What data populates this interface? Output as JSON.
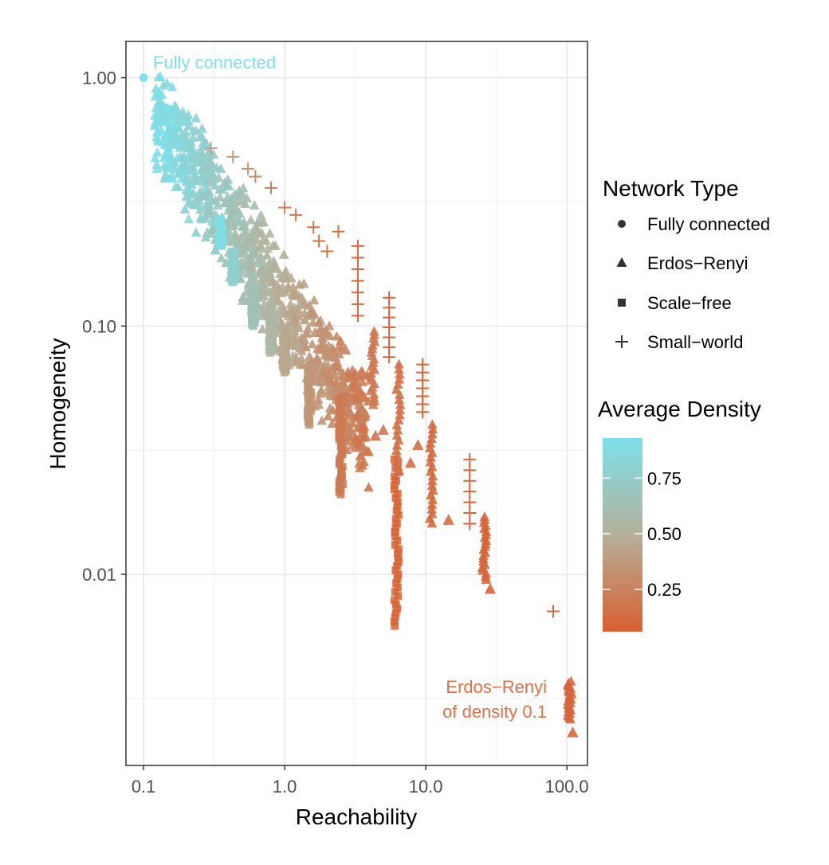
{
  "chart_data": {
    "type": "scatter",
    "xlabel": "Reachability",
    "ylabel": "Homogeneity",
    "x_scale": "log10",
    "y_scale": "log10",
    "xlim": [
      0.075,
      140
    ],
    "ylim": [
      0.0017,
      1.4
    ],
    "x_ticks": [
      0.1,
      1,
      10,
      100
    ],
    "x_tick_labels": [
      "0.1",
      "1.0",
      "10.0",
      "100.0"
    ],
    "y_ticks": [
      0.01,
      0.1,
      1
    ],
    "y_tick_labels": [
      "0.01",
      "0.10",
      "1.00"
    ],
    "grid": true,
    "legend_shape": {
      "title": "Network Type",
      "position": "right",
      "items": [
        {
          "label": "Fully connected",
          "shape": "circle"
        },
        {
          "label": "Erdos−Renyi",
          "shape": "triangle"
        },
        {
          "label": "Scale−free",
          "shape": "square"
        },
        {
          "label": "Small−world",
          "shape": "plus"
        }
      ]
    },
    "legend_color": {
      "title": "Average Density",
      "position": "right",
      "low_color": "#d95f30",
      "mid_color": "#b5b09a",
      "high_color": "#7de0ea",
      "range": [
        0.06,
        0.93
      ],
      "ticks": [
        0.25,
        0.5,
        0.75
      ],
      "tick_labels": [
        "0.25",
        "0.50",
        "0.75"
      ]
    },
    "annotations": [
      {
        "text": "Fully connected",
        "x": 0.115,
        "y": 1.07,
        "color": "#7de0ea"
      },
      {
        "lines": [
          "Erdos−Renyi",
          "of density 0.1"
        ],
        "x": 65,
        "y": 0.0032,
        "color": "#e07045"
      }
    ],
    "series": [
      {
        "name": "Fully connected",
        "shape": "circle",
        "points": [
          [
            0.1,
            1.0,
            0.93
          ]
        ]
      },
      {
        "name": "Scale−free",
        "shape": "square",
        "clusters": [
          {
            "x": 0.35,
            "y_min": 0.21,
            "y_max": 0.27,
            "density": 0.9
          },
          {
            "x": 0.43,
            "y_min": 0.15,
            "y_max": 0.2,
            "density": 0.78
          },
          {
            "x": 0.6,
            "y_min": 0.1,
            "y_max": 0.15,
            "density": 0.65
          },
          {
            "x": 0.8,
            "y_min": 0.078,
            "y_max": 0.12,
            "density": 0.55
          },
          {
            "x": 1.0,
            "y_min": 0.065,
            "y_max": 0.095,
            "density": 0.45
          },
          {
            "x": 1.5,
            "y_min": 0.04,
            "y_max": 0.07,
            "density": 0.35
          },
          {
            "x": 2.5,
            "y_min": 0.021,
            "y_max": 0.052,
            "density": 0.2
          },
          {
            "x": 6.2,
            "y_min": 0.0062,
            "y_max": 0.029,
            "density": 0.08
          }
        ]
      },
      {
        "name": "Erdos−Renyi",
        "shape": "triangle",
        "clusters": [
          {
            "x": 4.2,
            "y_min": 0.048,
            "y_max": 0.095,
            "density": 0.2
          },
          {
            "x": 6.4,
            "y_min": 0.026,
            "y_max": 0.07,
            "density": 0.15
          },
          {
            "x": 11.0,
            "y_min": 0.016,
            "y_max": 0.04,
            "density": 0.12
          },
          {
            "x": 26.0,
            "y_min": 0.0095,
            "y_max": 0.017,
            "density": 0.1
          },
          {
            "x": 105.0,
            "y_min": 0.0026,
            "y_max": 0.0037,
            "density": 0.1
          }
        ],
        "points": [
          [
            5.0,
            0.038,
            0.2
          ],
          [
            4.4,
            0.036,
            0.18
          ],
          [
            3.5,
            0.065,
            0.25
          ],
          [
            8.8,
            0.033,
            0.15
          ],
          [
            7.8,
            0.028,
            0.15
          ],
          [
            14.5,
            0.0165,
            0.12
          ],
          [
            28.6,
            0.0087,
            0.1
          ],
          [
            110.0,
            0.0023,
            0.1
          ],
          [
            2.7,
            0.08,
            0.28
          ]
        ]
      },
      {
        "name": "Small−world",
        "shape": "plus",
        "clusters": [
          {
            "x": 3.3,
            "y_min": 0.11,
            "y_max": 0.21,
            "density": 0.12
          },
          {
            "x": 5.5,
            "y_min": 0.075,
            "y_max": 0.13,
            "density": 0.1
          },
          {
            "x": 9.5,
            "y_min": 0.045,
            "y_max": 0.07,
            "density": 0.1
          },
          {
            "x": 20.5,
            "y_min": 0.016,
            "y_max": 0.029,
            "density": 0.1
          }
        ],
        "points": [
          [
            0.3,
            0.52,
            0.45
          ],
          [
            0.43,
            0.48,
            0.4
          ],
          [
            0.55,
            0.43,
            0.35
          ],
          [
            0.62,
            0.4,
            0.3
          ],
          [
            0.8,
            0.36,
            0.25
          ],
          [
            1.0,
            0.3,
            0.22
          ],
          [
            1.2,
            0.28,
            0.2
          ],
          [
            1.6,
            0.25,
            0.18
          ],
          [
            2.0,
            0.2,
            0.16
          ],
          [
            2.4,
            0.24,
            0.15
          ],
          [
            1.75,
            0.22,
            0.17
          ],
          [
            80.0,
            0.0071,
            0.12
          ]
        ]
      },
      {
        "name": "Erdos−Renyi band",
        "shape": "triangle",
        "band": {
          "x_from": 0.12,
          "x_to": 4.0,
          "y_at_from": 0.72,
          "slope": -0.85,
          "spread": 0.25,
          "density_from": 0.93,
          "density_to": 0.18
        }
      }
    ]
  }
}
